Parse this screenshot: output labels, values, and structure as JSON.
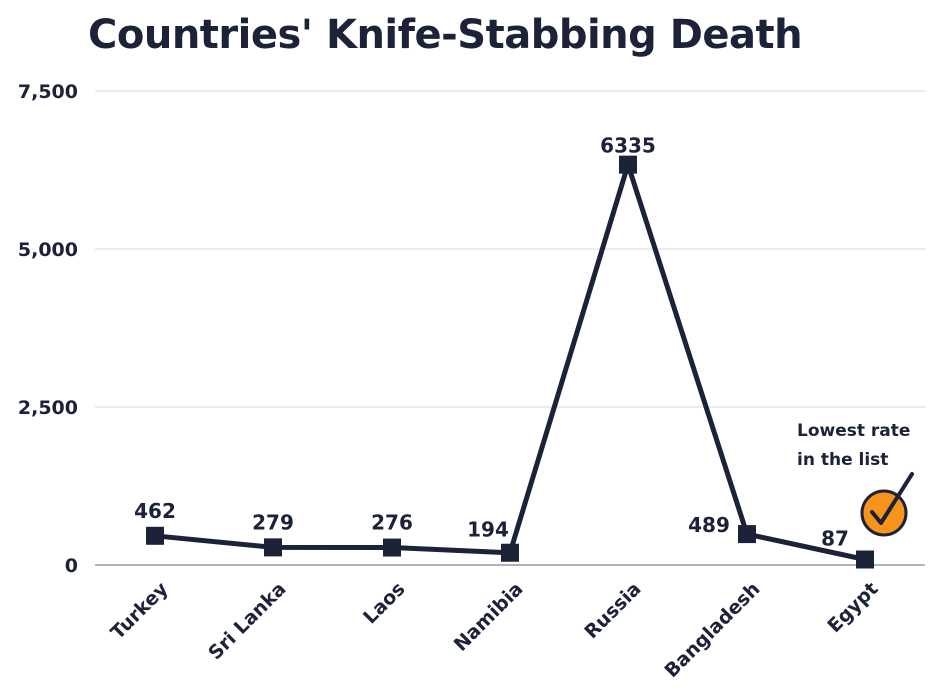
{
  "chart_data": {
    "type": "line",
    "title": "Countries' Knife-Stabbing Death",
    "xlabel": "",
    "ylabel": "",
    "categories": [
      "Turkey",
      "Sri Lanka",
      "Laos",
      "Namibia",
      "Russia",
      "Bangladesh",
      "Egypt"
    ],
    "values": [
      462,
      279,
      276,
      194,
      6335,
      489,
      87
    ],
    "data_labels": [
      "462",
      "279",
      "276",
      "194",
      "6335",
      "489",
      "87"
    ],
    "ylim": [
      0,
      7500
    ],
    "yticks": [
      0,
      2500,
      5000,
      7500
    ],
    "ytick_labels": [
      "0",
      "2,500",
      "5,000",
      "7,500"
    ],
    "grid": true,
    "legend": "none",
    "annotation": {
      "target": "Egypt",
      "lines": [
        "Lowest rate",
        "in the list"
      ],
      "icon": "check-circle-icon"
    },
    "colors": {
      "line": "#1c2238",
      "marker": "#1c2238",
      "grid": "#d9d9d9",
      "badge_fill": "#f7941d",
      "badge_stroke": "#1c2238"
    }
  }
}
